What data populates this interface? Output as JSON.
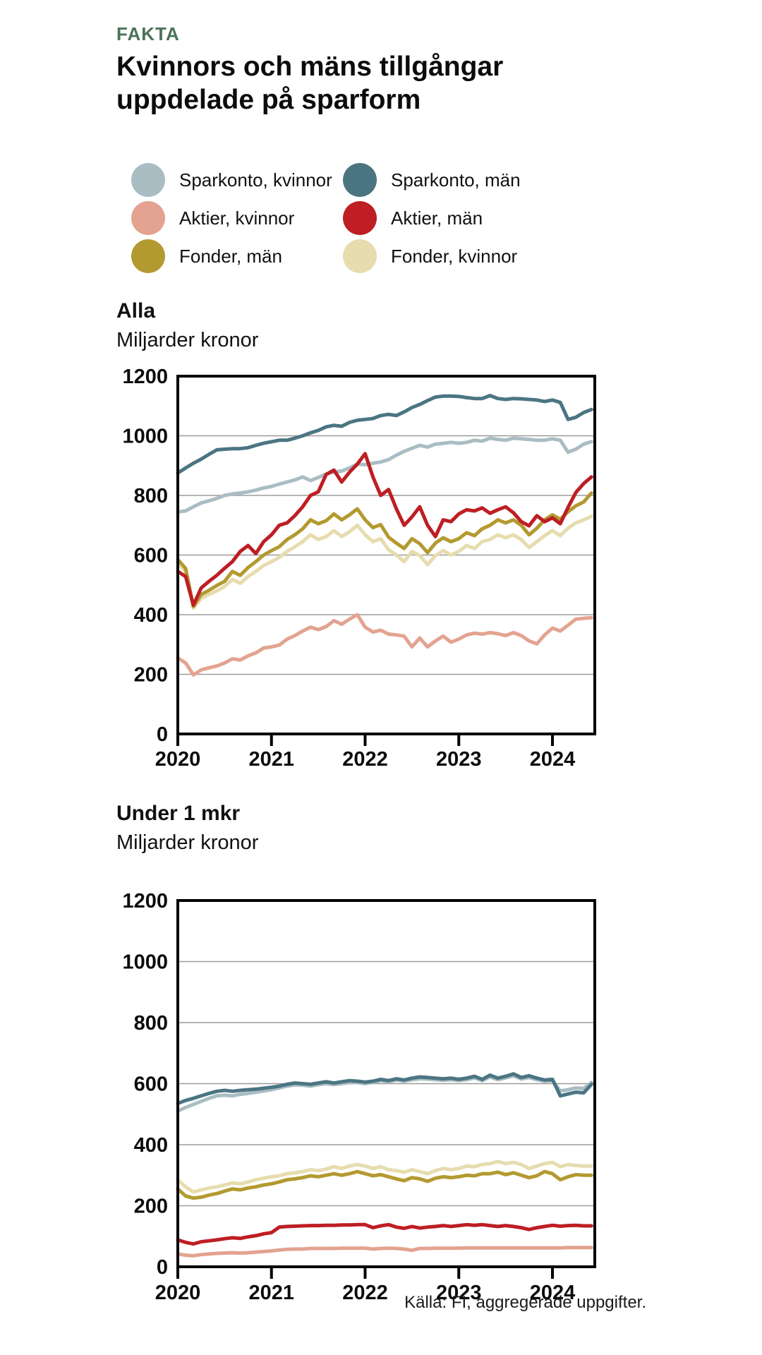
{
  "kicker": "FAKTA",
  "title_line1": "Kvinnors och mäns tillgångar",
  "title_line2": "uppdelade på sparform",
  "kicker_color": "#4c7257",
  "source": "Källa: FI, aggregerade uppgifter.",
  "legend": {
    "items": [
      {
        "label": "Sparkonto, kvinnor",
        "color": "#a9bdc3"
      },
      {
        "label": "Sparkonto, män",
        "color": "#4b7583"
      },
      {
        "label": "Aktier, kvinnor",
        "color": "#e3a390"
      },
      {
        "label": "Aktier, män",
        "color": "#be1e24"
      },
      {
        "label": "Fonder, män",
        "color": "#b39a30"
      },
      {
        "label": "Fonder, kvinnor",
        "color": "#e6dcae"
      }
    ]
  },
  "chart_data": [
    {
      "type": "line",
      "title": "Alla",
      "ylabel": "Miljarder kronor",
      "ylim": [
        0,
        1200
      ],
      "y_ticks": [
        0,
        200,
        400,
        600,
        800,
        1000,
        1200
      ],
      "x_tick_labels": [
        "2020",
        "2021",
        "2022",
        "2023",
        "2024"
      ],
      "points_per_year": 12,
      "grid": "horizontal",
      "legend_position": "top",
      "series": [
        {
          "id": "sparkonto-kvinnor",
          "name": "Sparkonto, kvinnor",
          "color": "#a9bdc3",
          "values": [
            745,
            748,
            762,
            775,
            782,
            790,
            800,
            805,
            808,
            812,
            818,
            825,
            830,
            838,
            845,
            852,
            862,
            850,
            860,
            872,
            878,
            882,
            892,
            905,
            903,
            908,
            912,
            920,
            935,
            948,
            958,
            968,
            962,
            972,
            975,
            978,
            975,
            978,
            985,
            982,
            992,
            988,
            985,
            992,
            990,
            988,
            985,
            985,
            990,
            985,
            945,
            955,
            972,
            980
          ]
        },
        {
          "id": "sparkonto-man",
          "name": "Sparkonto, män",
          "color": "#4b7583",
          "values": [
            875,
            892,
            908,
            922,
            938,
            953,
            955,
            957,
            957,
            960,
            968,
            975,
            980,
            985,
            985,
            992,
            1000,
            1010,
            1018,
            1030,
            1035,
            1032,
            1045,
            1052,
            1055,
            1058,
            1068,
            1072,
            1068,
            1080,
            1095,
            1105,
            1118,
            1130,
            1133,
            1133,
            1132,
            1128,
            1125,
            1125,
            1135,
            1125,
            1122,
            1125,
            1124,
            1122,
            1120,
            1115,
            1120,
            1112,
            1055,
            1062,
            1078,
            1088
          ]
        },
        {
          "id": "aktier-kvinnor",
          "name": "Aktier, kvinnor",
          "color": "#e3a390",
          "values": [
            255,
            238,
            198,
            215,
            222,
            228,
            238,
            252,
            248,
            262,
            272,
            288,
            292,
            298,
            318,
            330,
            345,
            358,
            350,
            360,
            380,
            368,
            385,
            400,
            358,
            342,
            348,
            335,
            332,
            328,
            292,
            322,
            292,
            312,
            328,
            308,
            318,
            332,
            338,
            335,
            340,
            336,
            330,
            340,
            330,
            312,
            302,
            332,
            355,
            345,
            365,
            385,
            388,
            390
          ]
        },
        {
          "id": "fonder-kvinnor",
          "name": "Fonder, kvinnor",
          "color": "#e6dcae",
          "values": [
            572,
            545,
            422,
            455,
            468,
            480,
            495,
            518,
            505,
            528,
            545,
            565,
            578,
            592,
            612,
            628,
            645,
            668,
            652,
            662,
            682,
            662,
            678,
            700,
            668,
            645,
            655,
            618,
            600,
            578,
            612,
            598,
            568,
            598,
            615,
            600,
            612,
            632,
            622,
            645,
            652,
            668,
            658,
            668,
            652,
            625,
            645,
            665,
            682,
            665,
            690,
            708,
            718,
            730
          ]
        },
        {
          "id": "fonder-man",
          "name": "Fonder, män",
          "color": "#b39a30",
          "values": [
            585,
            555,
            428,
            468,
            482,
            498,
            512,
            545,
            532,
            558,
            578,
            600,
            615,
            628,
            652,
            668,
            688,
            718,
            705,
            715,
            738,
            718,
            735,
            755,
            718,
            692,
            702,
            660,
            640,
            622,
            655,
            638,
            608,
            640,
            658,
            645,
            655,
            675,
            665,
            688,
            700,
            718,
            708,
            718,
            700,
            668,
            690,
            718,
            735,
            720,
            745,
            765,
            778,
            808
          ]
        },
        {
          "id": "aktier-man",
          "name": "Aktier, män",
          "color": "#be1e24",
          "values": [
            545,
            528,
            432,
            490,
            512,
            532,
            556,
            578,
            612,
            632,
            605,
            645,
            668,
            700,
            708,
            732,
            762,
            800,
            812,
            870,
            885,
            845,
            878,
            905,
            940,
            862,
            800,
            820,
            755,
            700,
            728,
            762,
            700,
            662,
            718,
            712,
            738,
            752,
            748,
            758,
            740,
            752,
            762,
            742,
            712,
            698,
            732,
            712,
            725,
            705,
            760,
            810,
            840,
            862
          ]
        }
      ]
    },
    {
      "type": "line",
      "title": "Under 1 mkr",
      "ylabel": "Miljarder kronor",
      "ylim": [
        0,
        1200
      ],
      "y_ticks": [
        0,
        200,
        400,
        600,
        800,
        1000,
        1200
      ],
      "x_tick_labels": [
        "2020",
        "2021",
        "2022",
        "2023",
        "2024"
      ],
      "points_per_year": 12,
      "grid": "horizontal",
      "legend_position": "top",
      "series": [
        {
          "id": "sparkonto-kvinnor",
          "name": "Sparkonto, kvinnor",
          "color": "#a9bdc3",
          "values": [
            510,
            522,
            532,
            542,
            552,
            560,
            562,
            560,
            565,
            568,
            572,
            576,
            580,
            586,
            592,
            596,
            595,
            592,
            597,
            600,
            597,
            600,
            603,
            604,
            600,
            604,
            610,
            606,
            612,
            608,
            613,
            616,
            615,
            613,
            611,
            613,
            610,
            613,
            619,
            610,
            622,
            613,
            619,
            626,
            615,
            620,
            613,
            608,
            610,
            576,
            580,
            586,
            584,
            604
          ]
        },
        {
          "id": "sparkonto-man",
          "name": "Sparkonto, män",
          "color": "#4b7583",
          "values": [
            535,
            545,
            552,
            560,
            568,
            575,
            578,
            575,
            578,
            580,
            582,
            585,
            588,
            592,
            598,
            602,
            600,
            598,
            602,
            606,
            602,
            606,
            610,
            608,
            605,
            608,
            614,
            610,
            616,
            612,
            618,
            622,
            620,
            618,
            616,
            618,
            614,
            618,
            624,
            614,
            628,
            618,
            624,
            632,
            620,
            626,
            618,
            612,
            614,
            560,
            566,
            572,
            570,
            598
          ]
        },
        {
          "id": "aktier-kvinnor",
          "name": "Aktier, kvinnor",
          "color": "#e3a390",
          "values": [
            42,
            38,
            36,
            40,
            42,
            44,
            45,
            46,
            45,
            46,
            48,
            50,
            52,
            55,
            57,
            58,
            58,
            60,
            60,
            60,
            60,
            61,
            61,
            61,
            61,
            58,
            60,
            61,
            60,
            58,
            54,
            60,
            60,
            61,
            61,
            61,
            61,
            62,
            62,
            62,
            62,
            62,
            62,
            62,
            62,
            62,
            62,
            62,
            62,
            62,
            63,
            63,
            63,
            63
          ]
        },
        {
          "id": "fonder-kvinnor",
          "name": "Fonder, kvinnor",
          "color": "#e6dcae",
          "values": [
            285,
            262,
            245,
            252,
            258,
            262,
            268,
            275,
            272,
            278,
            285,
            290,
            295,
            298,
            305,
            308,
            312,
            318,
            315,
            320,
            328,
            322,
            330,
            335,
            330,
            322,
            328,
            318,
            315,
            310,
            318,
            312,
            305,
            315,
            322,
            318,
            322,
            330,
            328,
            335,
            338,
            345,
            338,
            342,
            335,
            322,
            330,
            338,
            342,
            328,
            335,
            332,
            330,
            330
          ]
        },
        {
          "id": "fonder-man",
          "name": "Fonder, män",
          "color": "#b39a30",
          "values": [
            255,
            232,
            225,
            228,
            235,
            240,
            248,
            255,
            252,
            258,
            262,
            268,
            272,
            278,
            285,
            288,
            292,
            298,
            295,
            300,
            305,
            300,
            305,
            312,
            305,
            298,
            302,
            295,
            288,
            282,
            292,
            288,
            280,
            290,
            295,
            292,
            295,
            300,
            298,
            305,
            305,
            310,
            302,
            308,
            300,
            292,
            298,
            312,
            305,
            285,
            295,
            302,
            300,
            300
          ]
        },
        {
          "id": "aktier-man",
          "name": "Aktier, män",
          "color": "#be1e24",
          "values": [
            88,
            80,
            75,
            82,
            85,
            88,
            92,
            95,
            93,
            98,
            102,
            108,
            112,
            130,
            132,
            133,
            134,
            135,
            135,
            136,
            136,
            137,
            137,
            138,
            138,
            128,
            134,
            138,
            130,
            126,
            132,
            127,
            130,
            132,
            135,
            132,
            135,
            138,
            136,
            138,
            135,
            132,
            135,
            132,
            128,
            122,
            128,
            132,
            136,
            133,
            135,
            136,
            134,
            134
          ]
        }
      ]
    }
  ]
}
